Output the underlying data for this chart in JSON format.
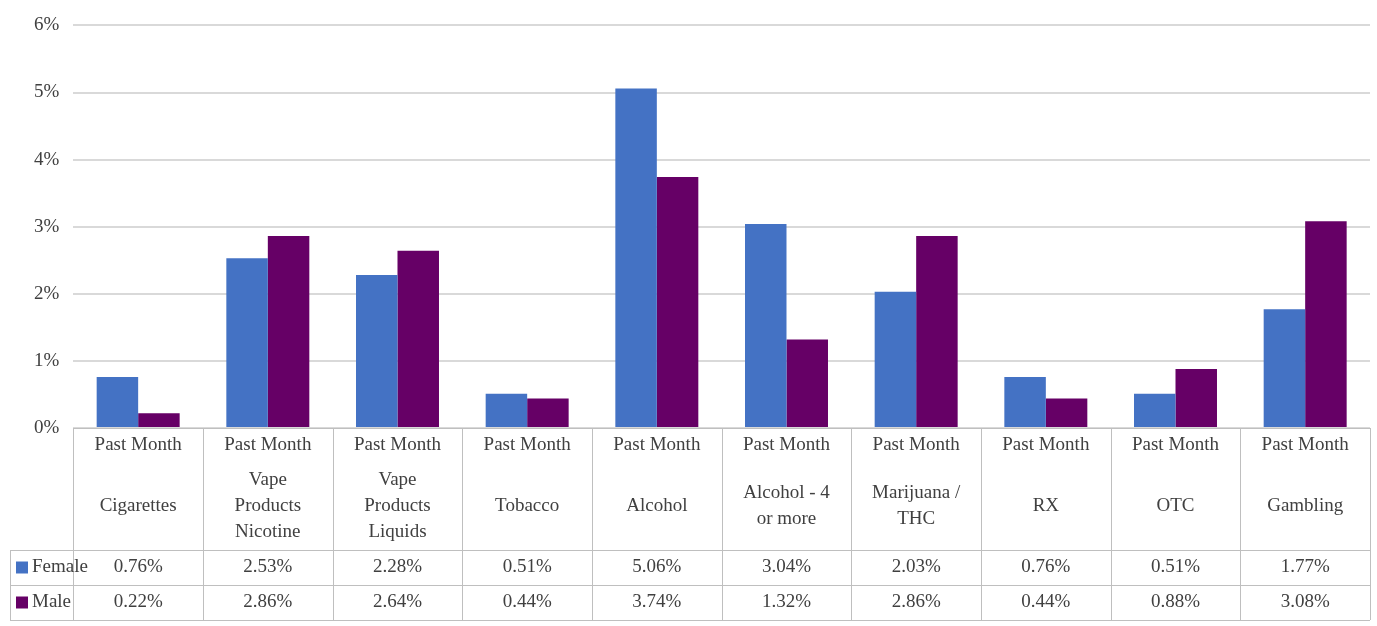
{
  "chart_data": {
    "type": "bar",
    "categories": [
      "Past Month\nCigarettes",
      "Past Month\nVape\nProducts\nNicotine",
      "Past Month\nVape\nProducts\nLiquids",
      "Past Month\nTobacco",
      "Past Month\nAlcohol",
      "Past Month\nAlcohol - 4\nor more",
      "Past Month\nMarijuana /\nTHC",
      "Past Month\nRX",
      "Past Month\nOTC",
      "Past Month\nGambling"
    ],
    "series": [
      {
        "name": "Female",
        "color": "#4472c4",
        "values": [
          0.76,
          2.53,
          2.28,
          0.51,
          5.06,
          3.04,
          2.03,
          0.76,
          0.51,
          1.77
        ],
        "value_labels": [
          "0.76%",
          "2.53%",
          "2.28%",
          "0.51%",
          "5.06%",
          "3.04%",
          "2.03%",
          "0.76%",
          "0.51%",
          "1.77%"
        ]
      },
      {
        "name": "Male",
        "color": "#660066",
        "values": [
          0.22,
          2.86,
          2.64,
          0.44,
          3.74,
          1.32,
          2.86,
          0.44,
          0.88,
          3.08
        ],
        "value_labels": [
          "0.22%",
          "2.86%",
          "2.64%",
          "0.44%",
          "3.74%",
          "1.32%",
          "2.86%",
          "0.44%",
          "0.88%",
          "3.08%"
        ]
      }
    ],
    "ylim": [
      0,
      6
    ],
    "yticks": [
      {
        "value": 0,
        "label": "0%"
      },
      {
        "value": 1,
        "label": "1%"
      },
      {
        "value": 2,
        "label": "2%"
      },
      {
        "value": 3,
        "label": "3%"
      },
      {
        "value": 4,
        "label": "4%"
      },
      {
        "value": 5,
        "label": "5%"
      },
      {
        "value": 6,
        "label": "6%"
      }
    ],
    "grid": "y",
    "legend": "bottom left"
  }
}
